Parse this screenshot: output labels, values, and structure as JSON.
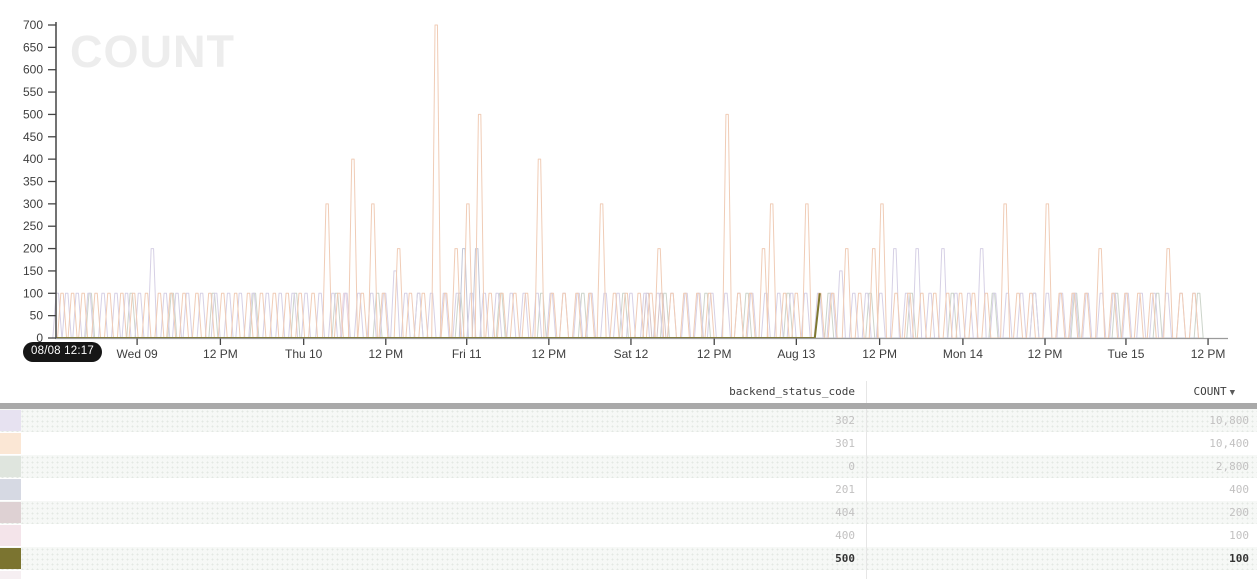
{
  "chart_data": {
    "type": "line",
    "title_watermark": "COUNT",
    "x_start_label": "08/08 12:17",
    "ylim": [
      0,
      700
    ],
    "y_tick_step": 50,
    "grid": false,
    "legend_position": "table-below",
    "y_ticks": [
      700,
      650,
      600,
      550,
      500,
      450,
      400,
      350,
      300,
      250,
      200,
      150,
      100,
      50,
      0
    ],
    "x_ticks": [
      {
        "label": "Wed 09",
        "pos": 0.07
      },
      {
        "label": "12 PM",
        "pos": 0.141
      },
      {
        "label": "Thu 10",
        "pos": 0.212
      },
      {
        "label": "12 PM",
        "pos": 0.282
      },
      {
        "label": "Fri 11",
        "pos": 0.351
      },
      {
        "label": "12 PM",
        "pos": 0.421
      },
      {
        "label": "Sat 12",
        "pos": 0.491
      },
      {
        "label": "12 PM",
        "pos": 0.562
      },
      {
        "label": "Aug 13",
        "pos": 0.632
      },
      {
        "label": "12 PM",
        "pos": 0.703
      },
      {
        "label": "Mon 14",
        "pos": 0.774
      },
      {
        "label": "12 PM",
        "pos": 0.844
      },
      {
        "label": "Tue 15",
        "pos": 0.913
      },
      {
        "label": "12 PM",
        "pos": 0.983
      }
    ],
    "series": [
      {
        "name": "0",
        "color": "#ccd4ca",
        "total": 2800,
        "spikes": [
          [
            0.03,
            100
          ],
          [
            0.065,
            100
          ],
          [
            0.1,
            100
          ],
          [
            0.135,
            100
          ],
          [
            0.17,
            100
          ],
          [
            0.205,
            100
          ],
          [
            0.24,
            100
          ],
          [
            0.275,
            100
          ],
          [
            0.31,
            100
          ],
          [
            0.345,
            100
          ],
          [
            0.38,
            100
          ],
          [
            0.415,
            100
          ],
          [
            0.45,
            100
          ],
          [
            0.485,
            100
          ],
          [
            0.52,
            100
          ],
          [
            0.555,
            100
          ],
          [
            0.59,
            100
          ],
          [
            0.625,
            100
          ],
          [
            0.66,
            100
          ],
          [
            0.695,
            100
          ],
          [
            0.73,
            100
          ],
          [
            0.765,
            100
          ],
          [
            0.8,
            100
          ],
          [
            0.835,
            100
          ],
          [
            0.87,
            100
          ],
          [
            0.905,
            100
          ],
          [
            0.94,
            100
          ],
          [
            0.975,
            100
          ]
        ]
      },
      {
        "name": "404",
        "color": "#d6c4c7",
        "total": 200,
        "spikes": [
          [
            0.505,
            100
          ],
          [
            0.517,
            100
          ]
        ]
      },
      {
        "name": "400",
        "color": "#eed5e0",
        "total": 100,
        "spikes": [
          [
            0.247,
            100
          ]
        ]
      },
      {
        "name": "201",
        "color": "#c2c6d6",
        "total": 400,
        "spikes": [
          [
            0.3485,
            200
          ],
          [
            0.3595,
            200
          ]
        ]
      },
      {
        "name": "302",
        "color": "#d6d0e5",
        "total": 10800,
        "spikes": [
          [
            0.002,
            100
          ],
          [
            0.01,
            100
          ],
          [
            0.019,
            100
          ],
          [
            0.029,
            100
          ],
          [
            0.041,
            100
          ],
          [
            0.052,
            100
          ],
          [
            0.061,
            100
          ],
          [
            0.072,
            100
          ],
          [
            0.083,
            200
          ],
          [
            0.094,
            100
          ],
          [
            0.104,
            100
          ],
          [
            0.113,
            100
          ],
          [
            0.125,
            100
          ],
          [
            0.137,
            100
          ],
          [
            0.148,
            100
          ],
          [
            0.158,
            100
          ],
          [
            0.169,
            100
          ],
          [
            0.181,
            100
          ],
          [
            0.192,
            100
          ],
          [
            0.203,
            100
          ],
          [
            0.214,
            100
          ],
          [
            0.226,
            100
          ],
          [
            0.237,
            100
          ],
          [
            0.248,
            100
          ],
          [
            0.259,
            100
          ],
          [
            0.27,
            100
          ],
          [
            0.281,
            100
          ],
          [
            0.29,
            150
          ],
          [
            0.299,
            100
          ],
          [
            0.31,
            100
          ],
          [
            0.321,
            100
          ],
          [
            0.332,
            100
          ],
          [
            0.343,
            100
          ],
          [
            0.355,
            100
          ],
          [
            0.366,
            100
          ],
          [
            0.377,
            100
          ],
          [
            0.389,
            100
          ],
          [
            0.4,
            100
          ],
          [
            0.411,
            100
          ],
          [
            0.423,
            100
          ],
          [
            0.434,
            100
          ],
          [
            0.446,
            100
          ],
          [
            0.457,
            100
          ],
          [
            0.469,
            100
          ],
          [
            0.48,
            100
          ],
          [
            0.491,
            100
          ],
          [
            0.503,
            100
          ],
          [
            0.514,
            100
          ],
          [
            0.526,
            100
          ],
          [
            0.538,
            100
          ],
          [
            0.549,
            100
          ],
          [
            0.56,
            100
          ],
          [
            0.572,
            100
          ],
          [
            0.583,
            100
          ],
          [
            0.594,
            100
          ],
          [
            0.606,
            100
          ],
          [
            0.617,
            100
          ],
          [
            0.628,
            100
          ],
          [
            0.64,
            100
          ],
          [
            0.651,
            100
          ],
          [
            0.662,
            100
          ],
          [
            0.67,
            150
          ],
          [
            0.681,
            100
          ],
          [
            0.692,
            100
          ],
          [
            0.704,
            100
          ],
          [
            0.716,
            200
          ],
          [
            0.726,
            100
          ],
          [
            0.735,
            200
          ],
          [
            0.746,
            100
          ],
          [
            0.757,
            200
          ],
          [
            0.768,
            100
          ],
          [
            0.779,
            100
          ],
          [
            0.79,
            200
          ],
          [
            0.801,
            100
          ],
          [
            0.812,
            100
          ],
          [
            0.824,
            100
          ],
          [
            0.835,
            100
          ],
          [
            0.846,
            100
          ],
          [
            0.858,
            100
          ],
          [
            0.869,
            100
          ],
          [
            0.88,
            100
          ],
          [
            0.892,
            100
          ],
          [
            0.903,
            100
          ],
          [
            0.914,
            100
          ],
          [
            0.926,
            100
          ],
          [
            0.937,
            100
          ],
          [
            0.948,
            100
          ],
          [
            0.96,
            100
          ],
          [
            0.971,
            100
          ]
        ]
      },
      {
        "name": "301",
        "color": "#f0ccb6",
        "total": 10400,
        "spikes": [
          [
            0.006,
            100
          ],
          [
            0.015,
            100
          ],
          [
            0.024,
            100
          ],
          [
            0.035,
            100
          ],
          [
            0.046,
            100
          ],
          [
            0.057,
            100
          ],
          [
            0.067,
            100
          ],
          [
            0.078,
            100
          ],
          [
            0.089,
            100
          ],
          [
            0.099,
            100
          ],
          [
            0.11,
            100
          ],
          [
            0.121,
            100
          ],
          [
            0.132,
            100
          ],
          [
            0.143,
            100
          ],
          [
            0.154,
            100
          ],
          [
            0.165,
            100
          ],
          [
            0.176,
            100
          ],
          [
            0.187,
            100
          ],
          [
            0.198,
            100
          ],
          [
            0.209,
            100
          ],
          [
            0.22,
            100
          ],
          [
            0.232,
            300
          ],
          [
            0.242,
            100
          ],
          [
            0.254,
            400
          ],
          [
            0.262,
            100
          ],
          [
            0.271,
            300
          ],
          [
            0.28,
            100
          ],
          [
            0.293,
            200
          ],
          [
            0.303,
            100
          ],
          [
            0.314,
            100
          ],
          [
            0.325,
            700
          ],
          [
            0.333,
            100
          ],
          [
            0.342,
            200
          ],
          [
            0.352,
            300
          ],
          [
            0.362,
            500
          ],
          [
            0.371,
            100
          ],
          [
            0.381,
            100
          ],
          [
            0.392,
            100
          ],
          [
            0.402,
            100
          ],
          [
            0.413,
            400
          ],
          [
            0.424,
            100
          ],
          [
            0.434,
            100
          ],
          [
            0.445,
            100
          ],
          [
            0.456,
            100
          ],
          [
            0.466,
            300
          ],
          [
            0.477,
            100
          ],
          [
            0.487,
            100
          ],
          [
            0.498,
            100
          ],
          [
            0.508,
            100
          ],
          [
            0.515,
            200
          ],
          [
            0.526,
            100
          ],
          [
            0.537,
            100
          ],
          [
            0.548,
            100
          ],
          [
            0.558,
            100
          ],
          [
            0.573,
            500
          ],
          [
            0.583,
            100
          ],
          [
            0.593,
            100
          ],
          [
            0.604,
            200
          ],
          [
            0.611,
            300
          ],
          [
            0.622,
            100
          ],
          [
            0.632,
            100
          ],
          [
            0.641,
            300
          ],
          [
            0.652,
            100
          ],
          [
            0.663,
            100
          ],
          [
            0.675,
            200
          ],
          [
            0.686,
            100
          ],
          [
            0.698,
            200
          ],
          [
            0.705,
            300
          ],
          [
            0.717,
            100
          ],
          [
            0.728,
            100
          ],
          [
            0.739,
            100
          ],
          [
            0.75,
            100
          ],
          [
            0.761,
            100
          ],
          [
            0.772,
            100
          ],
          [
            0.783,
            100
          ],
          [
            0.794,
            100
          ],
          [
            0.81,
            300
          ],
          [
            0.821,
            100
          ],
          [
            0.832,
            100
          ],
          [
            0.846,
            300
          ],
          [
            0.857,
            100
          ],
          [
            0.868,
            100
          ],
          [
            0.879,
            100
          ],
          [
            0.891,
            200
          ],
          [
            0.902,
            100
          ],
          [
            0.913,
            100
          ],
          [
            0.924,
            100
          ],
          [
            0.935,
            100
          ],
          [
            0.949,
            200
          ],
          [
            0.96,
            100
          ],
          [
            0.971,
            100
          ]
        ]
      },
      {
        "name": "500",
        "color": "#7f7830",
        "total": 100,
        "line_width": 2,
        "terminates_at_last_spike": true,
        "spikes": [
          [
            0.652,
            100
          ]
        ]
      }
    ]
  },
  "table": {
    "headers": [
      "backend_status_code",
      "COUNT"
    ],
    "sort_icon": "▼",
    "sorted_by": "COUNT",
    "rows": [
      {
        "backend_status_code": "302",
        "count": "10,800",
        "swatch": "#e7e2f1"
      },
      {
        "backend_status_code": "301",
        "count": "10,400",
        "swatch": "#fbe7d5"
      },
      {
        "backend_status_code": "0",
        "count": "2,800",
        "swatch": "#dfe5de"
      },
      {
        "backend_status_code": "201",
        "count": "400",
        "swatch": "#d6d9e3"
      },
      {
        "backend_status_code": "404",
        "count": "200",
        "swatch": "#ded1d3"
      },
      {
        "backend_status_code": "400",
        "count": "100",
        "swatch": "#f4e4ea"
      },
      {
        "backend_status_code": "500",
        "count": "100",
        "swatch": "#7b7430",
        "selected": true
      }
    ],
    "partial_row_swatch": "#f6eff2"
  }
}
